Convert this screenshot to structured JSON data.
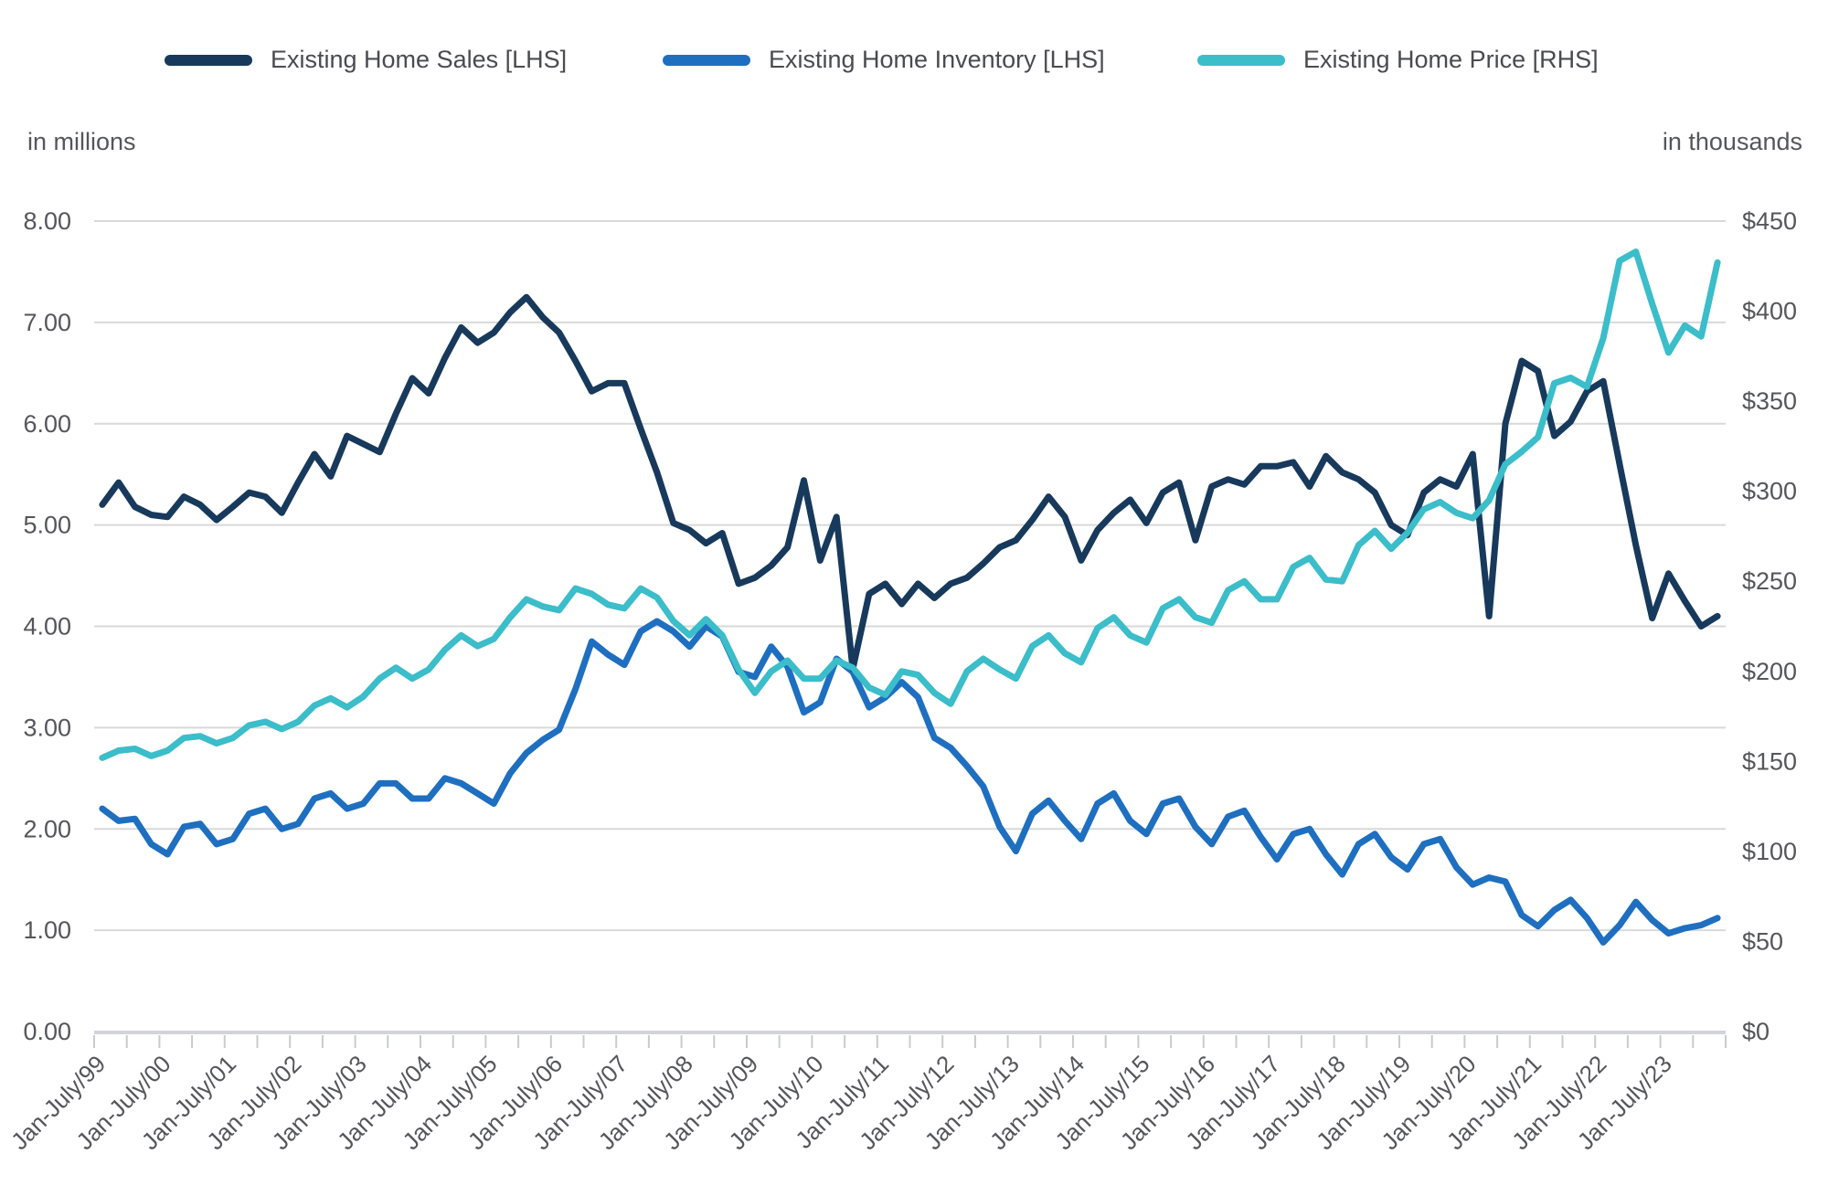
{
  "left_axis": {
    "title": "in millions",
    "ticks": [
      "8.00",
      "7.00",
      "6.00",
      "5.00",
      "4.00",
      "3.00",
      "2.00",
      "1.00",
      "0.00"
    ],
    "range": [
      0,
      8
    ]
  },
  "right_axis": {
    "title": "in thousands",
    "ticks": [
      "$450",
      "$400",
      "$350",
      "$300",
      "$250",
      "$200",
      "$150",
      "$100",
      "$50",
      "$0"
    ],
    "range": [
      0,
      450
    ]
  },
  "chart_data": {
    "type": "line",
    "title": "",
    "xlabel": "",
    "ylabel_left": "in millions",
    "ylabel_right": "in thousands",
    "grid": "horizontal",
    "legend_position": "top",
    "x_sampling": "quarterly 1999-Q1 through 2023-Q4 (values estimated from plot)",
    "categories": [
      "Jan-July/99",
      "Jan-July/00",
      "Jan-July/01",
      "Jan-July/02",
      "Jan-July/03",
      "Jan-July/04",
      "Jan-July/05",
      "Jan-July/06",
      "Jan-July/07",
      "Jan-July/08",
      "Jan-July/09",
      "Jan-July/10",
      "Jan-July/11",
      "Jan-July/12",
      "Jan-July/13",
      "Jan-July/14",
      "Jan-July/15",
      "Jan-July/16",
      "Jan-July/17",
      "Jan-July/18",
      "Jan-July/19",
      "Jan-July/20",
      "Jan-July/21",
      "Jan-July/22",
      "Jan-July/23"
    ],
    "ylim_left": [
      0,
      8
    ],
    "ylim_right": [
      0,
      450
    ],
    "series": [
      {
        "key": "inventory",
        "name": "Existing Home Inventory [LHS]",
        "axis": "left",
        "color": "#1e6fc0",
        "values": [
          2.2,
          2.08,
          2.1,
          1.85,
          1.75,
          2.02,
          2.05,
          1.85,
          1.9,
          2.15,
          2.2,
          2.0,
          2.05,
          2.3,
          2.35,
          2.2,
          2.25,
          2.45,
          2.45,
          2.3,
          2.3,
          2.5,
          2.45,
          2.35,
          2.25,
          2.55,
          2.75,
          2.88,
          2.98,
          3.38,
          3.85,
          3.72,
          3.62,
          3.95,
          4.05,
          3.95,
          3.8,
          4.0,
          3.9,
          3.55,
          3.5,
          3.8,
          3.6,
          3.15,
          3.25,
          3.68,
          3.55,
          3.2,
          3.3,
          3.45,
          3.3,
          2.9,
          2.8,
          2.62,
          2.42,
          2.02,
          1.78,
          2.15,
          2.28,
          2.08,
          1.9,
          2.25,
          2.35,
          2.08,
          1.95,
          2.25,
          2.3,
          2.02,
          1.85,
          2.12,
          2.18,
          1.92,
          1.7,
          1.95,
          2.0,
          1.75,
          1.55,
          1.85,
          1.95,
          1.72,
          1.6,
          1.85,
          1.9,
          1.62,
          1.45,
          1.52,
          1.48,
          1.15,
          1.04,
          1.2,
          1.3,
          1.12,
          0.88,
          1.05,
          1.28,
          1.1,
          0.97,
          1.02,
          1.05,
          1.12
        ]
      },
      {
        "key": "sales",
        "name": "Existing Home Sales [LHS]",
        "axis": "left",
        "color": "#17395c",
        "values": [
          5.2,
          5.42,
          5.18,
          5.1,
          5.08,
          5.28,
          5.2,
          5.05,
          5.18,
          5.32,
          5.28,
          5.12,
          5.42,
          5.7,
          5.48,
          5.88,
          5.8,
          5.72,
          6.1,
          6.45,
          6.3,
          6.65,
          6.95,
          6.8,
          6.9,
          7.1,
          7.25,
          7.05,
          6.9,
          6.62,
          6.32,
          6.4,
          6.4,
          5.95,
          5.52,
          5.02,
          4.95,
          4.82,
          4.92,
          4.42,
          4.48,
          4.6,
          4.78,
          5.44,
          4.65,
          5.08,
          3.58,
          4.32,
          4.42,
          4.22,
          4.42,
          4.28,
          4.42,
          4.48,
          4.62,
          4.78,
          4.85,
          5.05,
          5.28,
          5.08,
          4.65,
          4.95,
          5.12,
          5.25,
          5.02,
          5.32,
          5.42,
          4.85,
          5.38,
          5.45,
          5.4,
          5.58,
          5.58,
          5.62,
          5.38,
          5.68,
          5.52,
          5.45,
          5.32,
          5.0,
          4.9,
          5.32,
          5.45,
          5.38,
          5.7,
          4.1,
          6.0,
          6.62,
          6.52,
          5.88,
          6.02,
          6.32,
          6.42,
          5.6,
          4.8,
          4.08,
          4.52,
          4.25,
          4.0,
          4.1
        ]
      },
      {
        "key": "price",
        "name": "Existing Home Price [RHS]",
        "axis": "right",
        "color": "#3bbdca",
        "values": [
          152,
          156,
          157,
          153,
          156,
          163,
          164,
          160,
          163,
          170,
          172,
          168,
          172,
          181,
          185,
          180,
          186,
          196,
          202,
          196,
          201,
          212,
          220,
          214,
          218,
          230,
          240,
          236,
          234,
          246,
          243,
          237,
          235,
          246,
          241,
          228,
          220,
          229,
          220,
          201,
          188,
          200,
          206,
          196,
          196,
          206,
          202,
          191,
          187,
          200,
          198,
          188,
          182,
          200,
          207,
          201,
          196,
          214,
          220,
          210,
          205,
          224,
          230,
          220,
          216,
          235,
          240,
          230,
          227,
          245,
          250,
          240,
          240,
          258,
          263,
          251,
          250,
          270,
          278,
          268,
          277,
          290,
          294,
          288,
          285,
          295,
          315,
          322,
          330,
          360,
          363,
          358,
          385,
          428,
          433,
          404,
          377,
          392,
          386,
          427
        ]
      }
    ],
    "legend_order": [
      "sales",
      "inventory",
      "price"
    ]
  },
  "style": {
    "gridline_color": "#d9d9d9",
    "axis_text_color": "#55565a",
    "legend_text_color": "#4a4b4f",
    "background": "#ffffff"
  }
}
